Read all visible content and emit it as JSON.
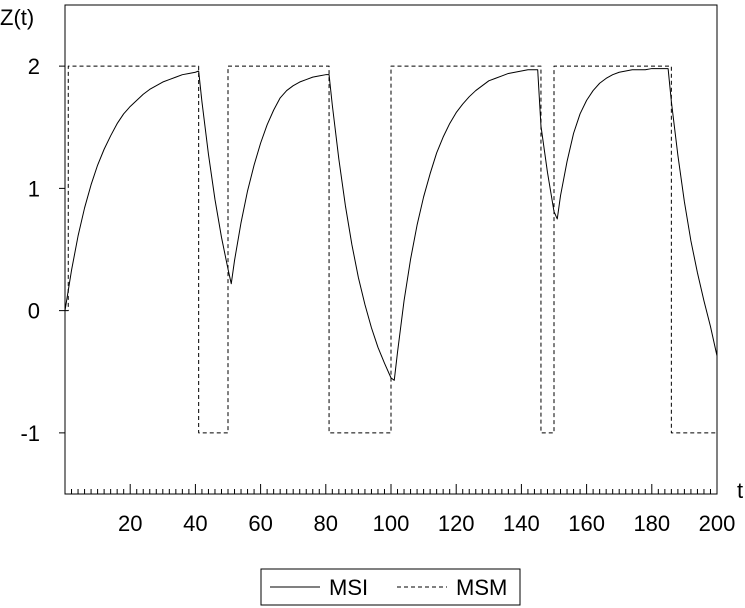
{
  "chart_data": {
    "type": "line",
    "xlabel": "t",
    "ylabel": "Z(t)",
    "xlim": [
      0,
      200
    ],
    "ylim": [
      -1.5,
      2.5
    ],
    "x_ticks": [
      20,
      40,
      60,
      80,
      100,
      120,
      140,
      160,
      180,
      200
    ],
    "y_ticks": [
      2,
      1,
      0,
      -1
    ],
    "grid": false,
    "legend_placement": "bottom-center",
    "series": [
      {
        "name": "MSI",
        "style": "solid",
        "color": "#000000",
        "x": [
          0,
          2,
          4,
          6,
          8,
          10,
          12,
          14,
          16,
          18,
          20,
          22,
          24,
          26,
          28,
          30,
          32,
          34,
          36,
          38,
          40,
          41,
          42,
          44,
          46,
          48,
          50,
          51,
          52,
          54,
          56,
          58,
          60,
          62,
          64,
          66,
          68,
          70,
          72,
          74,
          76,
          78,
          80,
          81,
          82,
          84,
          86,
          88,
          90,
          92,
          94,
          96,
          98,
          100,
          101,
          102,
          104,
          106,
          108,
          110,
          112,
          114,
          116,
          118,
          120,
          122,
          124,
          126,
          128,
          130,
          132,
          134,
          136,
          138,
          140,
          142,
          144,
          145,
          146,
          148,
          150,
          151,
          152,
          154,
          156,
          158,
          160,
          162,
          164,
          166,
          168,
          170,
          172,
          174,
          176,
          178,
          180,
          182,
          184,
          185,
          186,
          188,
          190,
          192,
          194,
          196,
          198,
          200
        ],
        "values": [
          0,
          0.33,
          0.61,
          0.84,
          1.03,
          1.19,
          1.32,
          1.43,
          1.53,
          1.61,
          1.67,
          1.72,
          1.77,
          1.81,
          1.84,
          1.87,
          1.89,
          1.91,
          1.93,
          1.94,
          1.95,
          1.96,
          1.71,
          1.28,
          0.91,
          0.6,
          0.34,
          0.22,
          0.41,
          0.72,
          0.98,
          1.19,
          1.37,
          1.52,
          1.64,
          1.74,
          1.8,
          1.84,
          1.87,
          1.89,
          1.91,
          1.92,
          1.93,
          1.93,
          1.68,
          1.24,
          0.86,
          0.54,
          0.27,
          0.05,
          -0.14,
          -0.3,
          -0.43,
          -0.55,
          -0.57,
          -0.34,
          0.08,
          0.42,
          0.7,
          0.93,
          1.12,
          1.29,
          1.42,
          1.53,
          1.62,
          1.69,
          1.75,
          1.8,
          1.84,
          1.88,
          1.9,
          1.92,
          1.94,
          1.95,
          1.96,
          1.97,
          1.97,
          1.97,
          1.51,
          1.13,
          0.81,
          0.75,
          0.94,
          1.22,
          1.45,
          1.61,
          1.72,
          1.8,
          1.86,
          1.9,
          1.93,
          1.95,
          1.96,
          1.97,
          1.97,
          1.97,
          1.98,
          1.98,
          1.98,
          1.98,
          1.71,
          1.27,
          0.89,
          0.57,
          0.31,
          0.08,
          -0.13,
          -0.37
        ]
      },
      {
        "name": "MSM",
        "style": "dashed",
        "color": "#000000",
        "x": [
          0,
          1,
          1,
          41,
          41,
          50,
          50,
          81,
          81,
          100,
          100,
          146,
          146,
          150,
          150,
          186,
          186,
          200
        ],
        "values": [
          0,
          0,
          2,
          2,
          -1,
          -1,
          2,
          2,
          -1,
          -1,
          2,
          2,
          -1,
          -1,
          2,
          2,
          -1,
          -1
        ]
      }
    ]
  }
}
